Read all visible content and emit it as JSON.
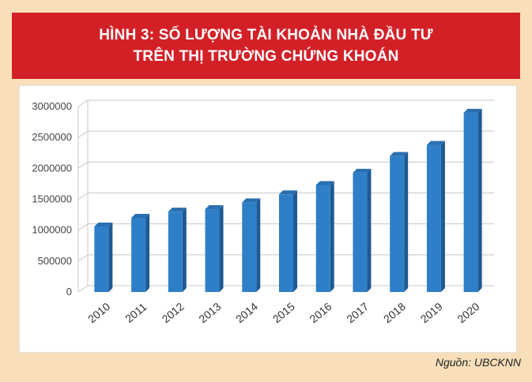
{
  "header": {
    "title_line1": "HÌNH 3: SỐ LƯỢNG TÀI KHOẢN NHÀ ĐẦU TƯ",
    "title_line2": "TRÊN THỊ TRƯỜNG CHỨNG KHOÁN"
  },
  "source": "Nguồn: UBCKNN",
  "colors": {
    "title_band": "#d32027",
    "background": "#f8dfb9",
    "bar_front": "#2f7fc8",
    "bar_side": "#1f5a93",
    "bar_top": "#2a6fb0"
  },
  "chart_data": {
    "type": "bar",
    "categories": [
      "2010",
      "2011",
      "2012",
      "2013",
      "2014",
      "2015",
      "2016",
      "2017",
      "2018",
      "2019",
      "2020"
    ],
    "values": [
      1060000,
      1200000,
      1300000,
      1340000,
      1450000,
      1580000,
      1730000,
      1930000,
      2200000,
      2380000,
      2900000
    ],
    "ylim": [
      0,
      3000000
    ],
    "yticks": [
      "0",
      "500000",
      "1000000",
      "1500000",
      "2000000",
      "2500000",
      "3000000"
    ],
    "grid": true,
    "style": "3d-column"
  }
}
